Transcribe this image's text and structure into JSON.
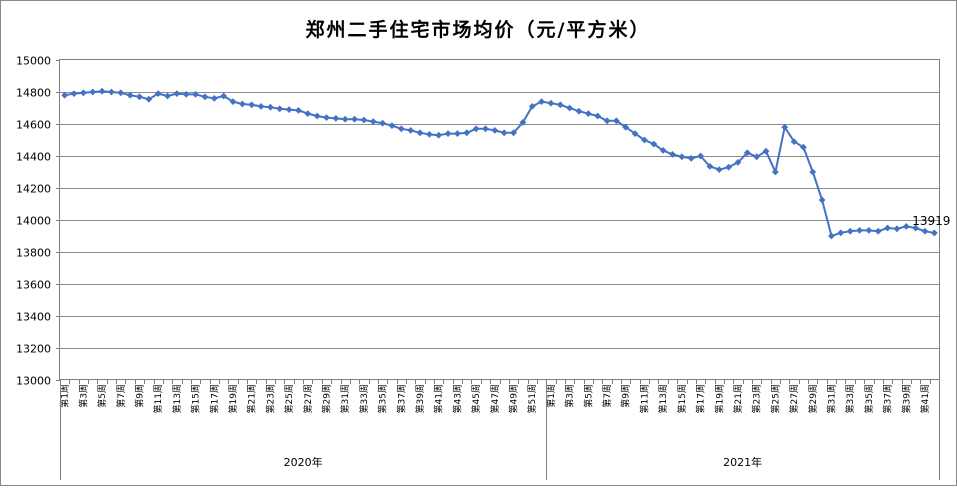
{
  "chart_data": {
    "type": "line",
    "title": "郑州二手住宅市场均价（元/平方米）",
    "ylim": [
      13000,
      15000
    ],
    "yticks": [
      13000,
      13200,
      13400,
      13600,
      13800,
      14000,
      14200,
      14400,
      14600,
      14800,
      15000
    ],
    "groups": [
      {
        "label": "2020年",
        "count": 52
      },
      {
        "label": "2021年",
        "count": 42
      }
    ],
    "x_labels_2020": [
      "第1周",
      "第3周",
      "第5周",
      "第7周",
      "第9周",
      "第11周",
      "第13周",
      "第15周",
      "第17周",
      "第19周",
      "第21周",
      "第23周",
      "第25周",
      "第27周",
      "第29周",
      "第31周",
      "第33周",
      "第35周",
      "第37周",
      "第39周",
      "第41周",
      "第43周",
      "第45周",
      "第47周",
      "第49周",
      "第51周"
    ],
    "x_labels_2021": [
      "第1周",
      "第3周",
      "第5周",
      "第7周",
      "第9周",
      "第11周",
      "第13周",
      "第15周",
      "第17周",
      "第19周",
      "第21周",
      "第23周",
      "第25周",
      "第27周",
      "第29周",
      "第31周",
      "第33周",
      "第35周",
      "第37周",
      "第39周",
      "第41周"
    ],
    "series": [
      {
        "color": "#4472C4",
        "values": [
          14780,
          14790,
          14795,
          14800,
          14805,
          14800,
          14795,
          14780,
          14770,
          14755,
          14790,
          14775,
          14790,
          14785,
          14785,
          14770,
          14760,
          14775,
          14740,
          14725,
          14720,
          14710,
          14705,
          14695,
          14690,
          14685,
          14665,
          14650,
          14640,
          14635,
          14630,
          14630,
          14625,
          14615,
          14605,
          14590,
          14570,
          14560,
          14545,
          14535,
          14530,
          14540,
          14540,
          14545,
          14570,
          14570,
          14560,
          14545,
          14545,
          14610,
          14710,
          14740,
          14730,
          14720,
          14700,
          14680,
          14665,
          14650,
          14620,
          14620,
          14580,
          14540,
          14500,
          14475,
          14435,
          14410,
          14395,
          14385,
          14400,
          14335,
          14315,
          14330,
          14360,
          14420,
          14395,
          14430,
          14300,
          14580,
          14490,
          14455,
          14300,
          14125,
          13900,
          13920,
          13930,
          13935,
          13935,
          13930,
          13950,
          13945,
          13960,
          13950,
          13930,
          13919
        ]
      }
    ],
    "last_value_label": "13919"
  }
}
